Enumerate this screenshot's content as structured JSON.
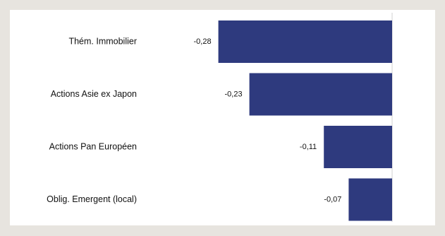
{
  "chart_data": {
    "type": "bar",
    "orientation": "horizontal",
    "categories": [
      "Thém. Immobilier",
      "Actions Asie ex Japon",
      "Actions Pan Européen",
      "Oblig. Emergent (local)"
    ],
    "values": [
      -0.28,
      -0.23,
      -0.11,
      -0.07
    ],
    "value_labels": [
      "-0,28",
      "-0,23",
      "-0,11",
      "-0,07"
    ],
    "xlim": [
      -0.3,
      0
    ],
    "title": "",
    "xlabel": "",
    "ylabel": "",
    "grid": false,
    "legend": "none",
    "bar_color": "#2e3a7e",
    "zero_line_color": "#d0d0d0",
    "background_color": "#ffffff",
    "outer_background_color": "#e7e4df"
  }
}
